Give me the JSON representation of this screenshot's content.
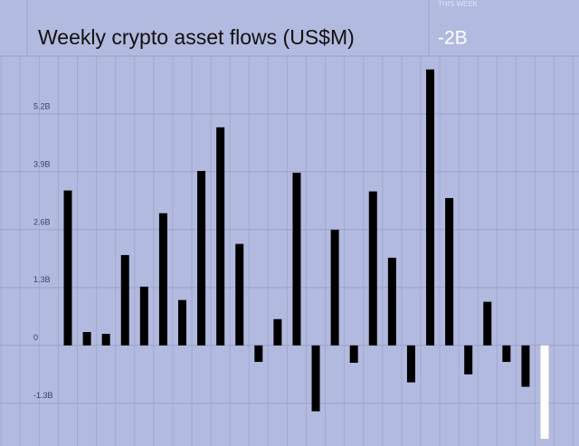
{
  "chart_data": {
    "type": "bar",
    "title": "Weekly crypto asset flows (US$M)",
    "this_week_label": "THIS WEEK",
    "this_week_value": "-2B",
    "values": [
      3.48,
      0.3,
      0.26,
      2.03,
      1.32,
      2.97,
      1.02,
      3.92,
      4.9,
      2.28,
      -0.37,
      0.59,
      3.88,
      -1.48,
      2.6,
      -0.39,
      3.46,
      1.97,
      -0.83,
      6.2,
      3.31,
      -0.65,
      0.98,
      -0.37,
      -0.93,
      -2.1
    ],
    "colors": [
      "#000000",
      "#000000",
      "#000000",
      "#000000",
      "#000000",
      "#000000",
      "#000000",
      "#000000",
      "#000000",
      "#000000",
      "#000000",
      "#000000",
      "#000000",
      "#000000",
      "#000000",
      "#000000",
      "#000000",
      "#000000",
      "#000000",
      "#000000",
      "#000000",
      "#000000",
      "#000000",
      "#000000",
      "#000000",
      "#ffffff"
    ],
    "ylim": [
      -2.26,
      6.5
    ],
    "yticks": [
      {
        "value": -1.3,
        "label": "-1.3B"
      },
      0,
      {
        "value": 1.3,
        "label": "1.3B"
      },
      {
        "value": 2.6,
        "label": "2.6B"
      },
      {
        "value": 3.9,
        "label": "3.9B"
      },
      {
        "value": 5.2,
        "label": "5.2B"
      }
    ],
    "grid": true
  }
}
